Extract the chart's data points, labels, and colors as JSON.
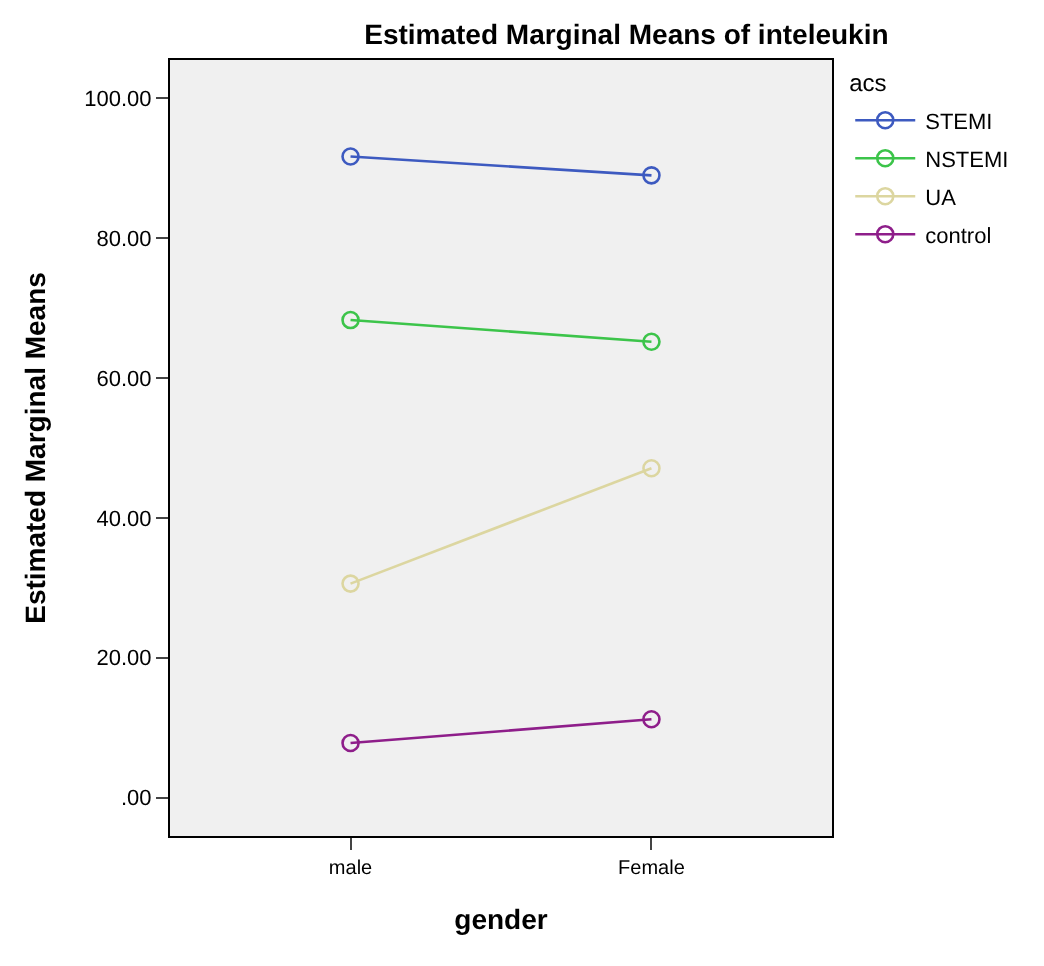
{
  "chart_data": {
    "type": "line",
    "title": "Estimated Marginal Means of inteleukin",
    "xlabel": "gender",
    "ylabel": "Estimated Marginal Means",
    "legend_title": "acs",
    "categories": [
      "male",
      "Female"
    ],
    "series": [
      {
        "name": "STEMI",
        "color": "#3d5ac0",
        "values": [
          91.7,
          89.0
        ]
      },
      {
        "name": "NSTEMI",
        "color": "#3cc44a",
        "values": [
          68.3,
          65.2
        ]
      },
      {
        "name": "UA",
        "color": "#dcd6a0",
        "values": [
          30.6,
          47.1
        ]
      },
      {
        "name": "control",
        "color": "#8e1e8a",
        "values": [
          7.8,
          11.2
        ]
      }
    ],
    "ylim": [
      -5.5,
      105.5
    ],
    "yticks": [
      {
        "value": 0,
        "label": ".00"
      },
      {
        "value": 20,
        "label": "20.00"
      },
      {
        "value": 40,
        "label": "40.00"
      },
      {
        "value": 60,
        "label": "60.00"
      },
      {
        "value": 80,
        "label": "80.00"
      },
      {
        "value": 100,
        "label": "100.00"
      }
    ],
    "grid": false,
    "legend": "top right",
    "marker": "circle",
    "line_style": "solid"
  }
}
